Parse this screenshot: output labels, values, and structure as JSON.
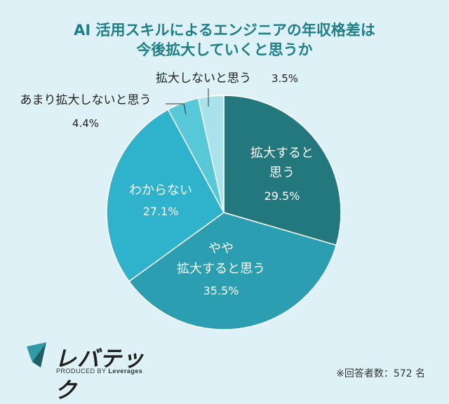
{
  "title_line1": "AI 活用スキルによるエンジニアの年収格差は",
  "title_line2": "今後拡大していくと思うか",
  "chart_data": {
    "type": "pie",
    "title": "AI 活用スキルによるエンジニアの年収格差は 今後拡大していくと思うか",
    "slices": [
      {
        "label": "拡大すると思う",
        "lines": [
          "拡大すると",
          "思う"
        ],
        "value": 29.5,
        "value_label": "29.5%",
        "color": "#23787e"
      },
      {
        "label": "やや拡大すると思う",
        "lines": [
          "やや",
          "拡大すると思う"
        ],
        "value": 35.5,
        "value_label": "35.5%",
        "color": "#2b9fb1"
      },
      {
        "label": "わからない",
        "lines": [
          "わからない"
        ],
        "value": 27.1,
        "value_label": "27.1%",
        "color": "#2fb3cc"
      },
      {
        "label": "あまり拡大しないと思う",
        "lines": [
          "あまり拡大しないと思う"
        ],
        "value": 4.4,
        "value_label": "4.4%",
        "color": "#56c8d8"
      },
      {
        "label": "拡大しないと思う",
        "lines": [
          "拡大しないと思う"
        ],
        "value": 3.5,
        "value_label": "3.5%",
        "color": "#a8e3ec"
      }
    ]
  },
  "logo": {
    "name": "レバテック",
    "sub_prefix": "PRODUCED BY",
    "sub_brand": "Leverages"
  },
  "note": "※回答者数：572 名"
}
